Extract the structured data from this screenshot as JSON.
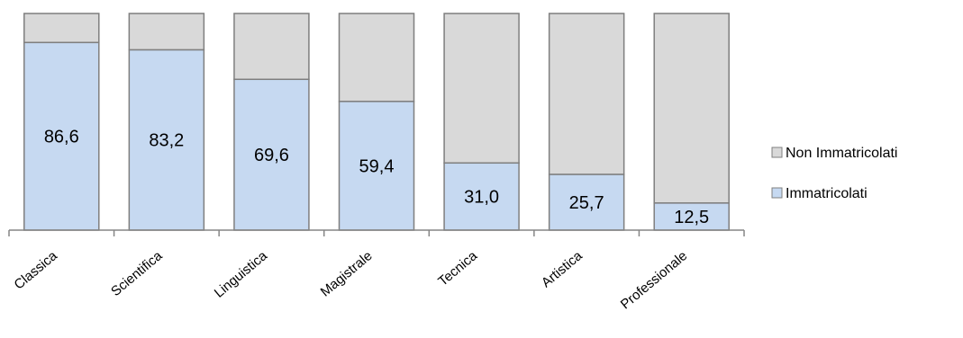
{
  "chart_data": {
    "type": "bar",
    "stacked": true,
    "percent_stacked": true,
    "categories": [
      "Classica",
      "Scientifica",
      "Linguistica",
      "Magistrale",
      "Tecnica",
      "Artistica",
      "Professionale"
    ],
    "series": [
      {
        "name": "Immatricolati",
        "values": [
          86.6,
          83.2,
          69.6,
          59.4,
          31.0,
          25.7,
          12.5
        ],
        "labels": [
          "86,6",
          "83,2",
          "69,6",
          "59,4",
          "31,0",
          "25,7",
          "12,5"
        ],
        "color": "#c6d9f1"
      },
      {
        "name": "Non Immatricolati",
        "values": [
          13.4,
          16.8,
          30.4,
          40.6,
          69.0,
          74.3,
          87.5
        ],
        "color": "#d9d9d9"
      }
    ],
    "ylim": [
      0,
      100
    ],
    "title": "",
    "xlabel": "",
    "ylabel": "",
    "grid": false,
    "legend_position": "right",
    "border_color": "#7f7f7f",
    "axis_color": "#868686"
  }
}
